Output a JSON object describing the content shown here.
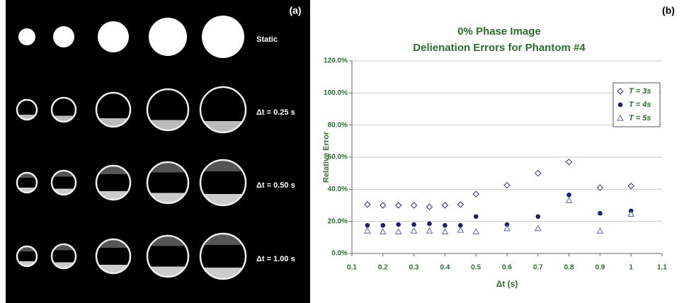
{
  "image_panel": {
    "label": "(a)",
    "row_labels": [
      "Static",
      "Δt = 0.25 s",
      "Δt = 0.50 s",
      "Δt = 1.00 s"
    ]
  },
  "chart_data": {
    "type": "scatter",
    "panel_label": "(b)",
    "title": "0% Phase Image",
    "subtitle": "Delienation Errors for Phantom #4",
    "x_label": "Δt (s)",
    "y_label": "Relative Error",
    "x": [
      0.15,
      0.2,
      0.25,
      0.3,
      0.35,
      0.4,
      0.45,
      0.5,
      0.6,
      0.7,
      0.8,
      0.9,
      1.0
    ],
    "series": [
      {
        "name": "T = 3s",
        "color": "#2b2f8a",
        "marker": "diamond",
        "values": [
          30.5,
          30,
          30,
          30,
          29,
          30,
          30.5,
          37,
          42.5,
          50,
          57,
          41,
          42
        ]
      },
      {
        "name": "T = 4s",
        "color": "#1c1f6e",
        "marker": "circle",
        "values": [
          17.5,
          17.5,
          18,
          18,
          18.5,
          17.5,
          17.5,
          23,
          18,
          23,
          36.5,
          25,
          26.5
        ]
      },
      {
        "name": "T = 5s",
        "color": "#5a64a8",
        "marker": "triangle",
        "values": [
          14,
          13.5,
          13.5,
          14,
          14,
          13.5,
          14.5,
          13.5,
          15.5,
          15.5,
          33,
          14,
          24.5
        ]
      }
    ],
    "xlim": [
      0.1,
      1.1
    ],
    "xticks": [
      0.1,
      0.2,
      0.3,
      0.4,
      0.5,
      0.6,
      0.7,
      0.8,
      0.9,
      1,
      1.1
    ],
    "ylim": [
      0,
      120
    ],
    "yticks": [
      {
        "value": 0,
        "label": "0.0%"
      },
      {
        "value": 20,
        "label": "20.0%"
      },
      {
        "value": 40,
        "label": "40.0%"
      },
      {
        "value": 60,
        "label": "60.0%"
      },
      {
        "value": 80,
        "label": "80.0%"
      },
      {
        "value": 100,
        "label": "100.0%"
      },
      {
        "value": 120,
        "label": "120.0%"
      }
    ],
    "grid": true,
    "legend": "upper right"
  }
}
